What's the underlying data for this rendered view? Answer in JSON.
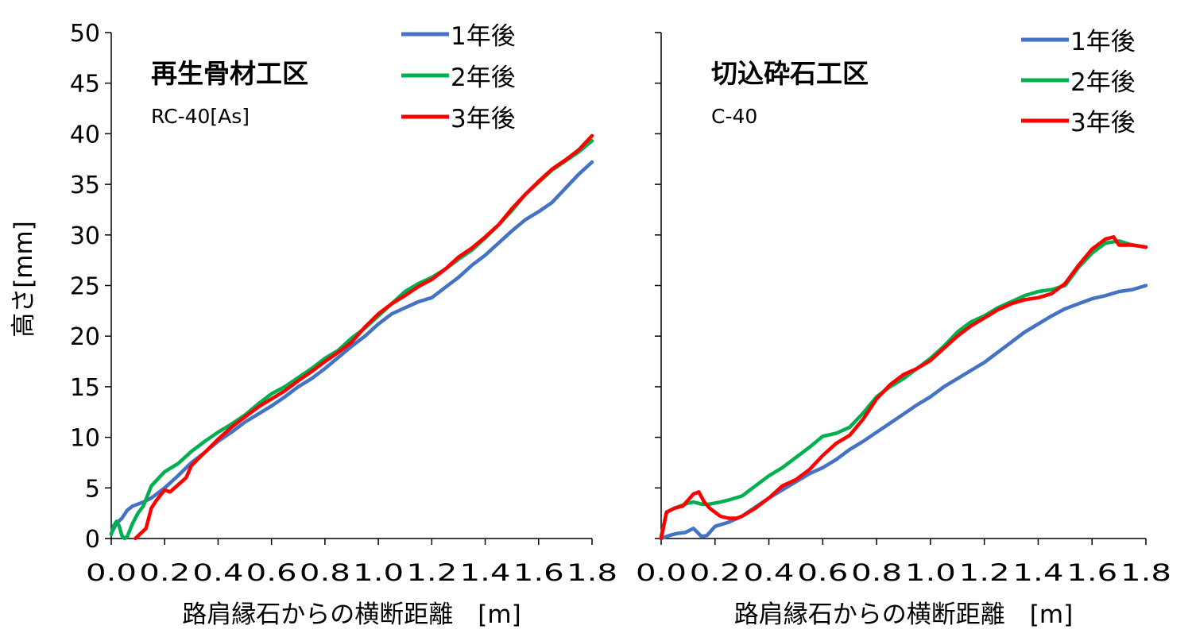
{
  "chart_data": [
    {
      "type": "line",
      "annotation": [
        "再生骨材工区",
        "RC-40[As]"
      ],
      "xlabel": "路肩縁石からの横断距離　[m]",
      "ylabel": "高さ[mm]",
      "xlim": [
        0,
        1.8
      ],
      "ylim": [
        0,
        50
      ],
      "xticks": [
        "0.0",
        "0.2",
        "0.4",
        "0.6",
        "0.8",
        "1.0",
        "1.2",
        "1.4",
        "1.6",
        "1.8"
      ],
      "yticks": [
        "0",
        "5",
        "10",
        "15",
        "20",
        "25",
        "30",
        "35",
        "40",
        "45",
        "50"
      ],
      "legend_position": "top-right",
      "series": [
        {
          "name": "1年後",
          "color": "#4472c4",
          "x": [
            0,
            0.02,
            0.04,
            0.06,
            0.08,
            0.1,
            0.12,
            0.15,
            0.2,
            0.25,
            0.3,
            0.35,
            0.4,
            0.45,
            0.5,
            0.55,
            0.6,
            0.65,
            0.7,
            0.75,
            0.8,
            0.85,
            0.9,
            0.95,
            1.0,
            1.05,
            1.1,
            1.15,
            1.2,
            1.25,
            1.3,
            1.35,
            1.4,
            1.45,
            1.5,
            1.55,
            1.6,
            1.65,
            1.7,
            1.75,
            1.8
          ],
          "y": [
            0.5,
            1.5,
            2.0,
            2.8,
            3.2,
            3.4,
            3.6,
            4.0,
            5.0,
            6.2,
            7.5,
            8.5,
            9.6,
            10.5,
            11.5,
            12.3,
            13.1,
            14.0,
            15.0,
            15.8,
            16.8,
            17.9,
            19.0,
            20.0,
            21.2,
            22.2,
            22.8,
            23.4,
            23.8,
            24.8,
            25.8,
            27.0,
            28.0,
            29.2,
            30.4,
            31.5,
            32.3,
            33.2,
            34.6,
            36.0,
            37.2
          ]
        },
        {
          "name": "2年後",
          "color": "#00b050",
          "x": [
            0,
            0.01,
            0.02,
            0.03,
            0.04,
            0.05,
            0.06,
            0.08,
            0.1,
            0.12,
            0.15,
            0.2,
            0.25,
            0.3,
            0.35,
            0.4,
            0.45,
            0.5,
            0.55,
            0.6,
            0.65,
            0.7,
            0.75,
            0.8,
            0.85,
            0.9,
            0.95,
            1.0,
            1.05,
            1.1,
            1.15,
            1.2,
            1.25,
            1.3,
            1.35,
            1.4,
            1.45,
            1.5,
            1.55,
            1.6,
            1.65,
            1.7,
            1.75,
            1.8
          ],
          "y": [
            0.4,
            1.3,
            1.7,
            1.2,
            0.3,
            0.0,
            0.2,
            1.5,
            2.5,
            3.2,
            5.2,
            6.6,
            7.4,
            8.6,
            9.6,
            10.5,
            11.3,
            12.2,
            13.3,
            14.3,
            15.0,
            15.9,
            16.8,
            17.8,
            18.6,
            19.8,
            20.8,
            22.0,
            23.2,
            24.4,
            25.2,
            25.8,
            26.6,
            27.6,
            28.5,
            29.7,
            31.0,
            32.4,
            34.0,
            35.2,
            36.4,
            37.3,
            38.2,
            39.3
          ]
        },
        {
          "name": "3年後",
          "color": "#ff0000",
          "x": [
            0.09,
            0.11,
            0.13,
            0.15,
            0.17,
            0.2,
            0.22,
            0.25,
            0.28,
            0.3,
            0.35,
            0.4,
            0.45,
            0.5,
            0.55,
            0.6,
            0.65,
            0.7,
            0.75,
            0.8,
            0.85,
            0.9,
            0.95,
            1.0,
            1.05,
            1.1,
            1.15,
            1.2,
            1.25,
            1.3,
            1.35,
            1.4,
            1.45,
            1.5,
            1.55,
            1.6,
            1.65,
            1.7,
            1.75,
            1.8
          ],
          "y": [
            0.0,
            0.5,
            1.0,
            3.0,
            3.8,
            4.8,
            4.6,
            5.3,
            6.0,
            7.2,
            8.5,
            9.8,
            11.0,
            12.0,
            13.0,
            13.8,
            14.6,
            15.6,
            16.5,
            17.5,
            18.4,
            19.4,
            20.9,
            22.2,
            23.2,
            24.0,
            24.9,
            25.6,
            26.6,
            27.8,
            28.7,
            29.8,
            31.0,
            32.6,
            34.0,
            35.3,
            36.5,
            37.4,
            38.4,
            39.8
          ]
        }
      ]
    },
    {
      "type": "line",
      "annotation": [
        "切込砕石工区",
        "C-40"
      ],
      "xlabel": "路肩縁石からの横断距離　[m]",
      "ylabel": "高さ[mm]",
      "xlim": [
        0,
        1.8
      ],
      "ylim": [
        0,
        50
      ],
      "xticks": [
        "0.0",
        "0.2",
        "0.4",
        "0.6",
        "0.8",
        "1.0",
        "1.2",
        "1.4",
        "1.6",
        "1.8"
      ],
      "yticks": [
        "0",
        "5",
        "10",
        "15",
        "20",
        "25",
        "30",
        "35",
        "40",
        "45",
        "50"
      ],
      "legend_position": "top-right",
      "series": [
        {
          "name": "1年後",
          "color": "#4472c4",
          "x": [
            0,
            0.03,
            0.06,
            0.09,
            0.12,
            0.15,
            0.17,
            0.2,
            0.25,
            0.3,
            0.35,
            0.4,
            0.45,
            0.5,
            0.55,
            0.6,
            0.65,
            0.7,
            0.75,
            0.8,
            0.85,
            0.9,
            0.95,
            1.0,
            1.05,
            1.1,
            1.15,
            1.2,
            1.25,
            1.3,
            1.35,
            1.4,
            1.45,
            1.5,
            1.55,
            1.6,
            1.65,
            1.7,
            1.75,
            1.8
          ],
          "y": [
            0,
            0.3,
            0.5,
            0.6,
            1.0,
            0.2,
            0.3,
            1.2,
            1.6,
            2.2,
            3.1,
            4.0,
            4.8,
            5.6,
            6.4,
            7.0,
            7.8,
            8.8,
            9.6,
            10.5,
            11.4,
            12.3,
            13.2,
            14.0,
            15.0,
            15.8,
            16.6,
            17.4,
            18.4,
            19.4,
            20.4,
            21.2,
            22.0,
            22.7,
            23.2,
            23.7,
            24.0,
            24.4,
            24.6,
            25.0
          ]
        },
        {
          "name": "2年後",
          "color": "#00b050",
          "x": [
            0,
            0.02,
            0.05,
            0.08,
            0.1,
            0.12,
            0.15,
            0.18,
            0.22,
            0.25,
            0.3,
            0.35,
            0.4,
            0.45,
            0.5,
            0.55,
            0.6,
            0.65,
            0.7,
            0.75,
            0.8,
            0.85,
            0.9,
            0.95,
            1.0,
            1.05,
            1.1,
            1.15,
            1.2,
            1.25,
            1.3,
            1.35,
            1.4,
            1.45,
            1.5,
            1.55,
            1.6,
            1.65,
            1.7,
            1.75,
            1.8
          ],
          "y": [
            0.2,
            2.6,
            3.0,
            3.3,
            3.5,
            3.6,
            3.4,
            3.4,
            3.6,
            3.8,
            4.2,
            5.2,
            6.2,
            7.0,
            8.0,
            9.0,
            10.1,
            10.4,
            11.0,
            12.4,
            14.0,
            15.0,
            15.8,
            16.8,
            17.8,
            19.0,
            20.4,
            21.4,
            22.0,
            22.8,
            23.4,
            24.0,
            24.4,
            24.6,
            25.0,
            26.8,
            28.2,
            29.2,
            29.4,
            29.0,
            28.8
          ]
        },
        {
          "name": "3年後",
          "color": "#ff0000",
          "x": [
            0,
            0.02,
            0.05,
            0.08,
            0.1,
            0.12,
            0.14,
            0.16,
            0.18,
            0.2,
            0.22,
            0.25,
            0.28,
            0.3,
            0.35,
            0.4,
            0.45,
            0.5,
            0.55,
            0.6,
            0.65,
            0.7,
            0.75,
            0.8,
            0.85,
            0.9,
            0.95,
            1.0,
            1.05,
            1.1,
            1.15,
            1.2,
            1.25,
            1.3,
            1.35,
            1.4,
            1.45,
            1.5,
            1.55,
            1.6,
            1.63,
            1.65,
            1.68,
            1.7,
            1.75,
            1.8
          ],
          "y": [
            0,
            2.6,
            3.0,
            3.2,
            3.8,
            4.4,
            4.6,
            3.6,
            3.0,
            2.6,
            2.2,
            2.0,
            2.0,
            2.2,
            3.0,
            4.0,
            5.2,
            5.8,
            6.8,
            8.2,
            9.4,
            10.2,
            11.8,
            13.8,
            15.2,
            16.2,
            16.8,
            17.6,
            18.8,
            20.0,
            21.0,
            21.8,
            22.6,
            23.2,
            23.6,
            23.8,
            24.2,
            25.2,
            27.0,
            28.6,
            29.2,
            29.6,
            29.8,
            29.0,
            29.0,
            28.8
          ]
        }
      ]
    }
  ]
}
